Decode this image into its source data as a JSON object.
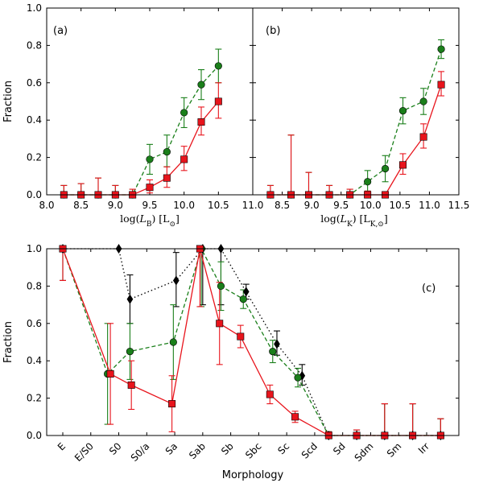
{
  "colors": {
    "green": "#1a7f1a",
    "red": "#e8141c",
    "black": "#000000"
  },
  "chart_data": [
    {
      "id": "a",
      "type": "line",
      "panel_label": "(a)",
      "xlabel": "log(L_B) [L_⊙]",
      "xlabel_main": "log(",
      "xlabel_var": "L",
      "xlabel_sub": "B",
      "xlabel_tail": ") [L",
      "xlabel_sub2": "⊙",
      "xlabel_close": "]",
      "ylabel": "Fraction",
      "xlim": [
        8.0,
        11.0
      ],
      "ylim": [
        0.0,
        1.0
      ],
      "xticks": [
        "8.0",
        "8.5",
        "9.0",
        "9.5",
        "10.0",
        "10.5",
        "11.0"
      ],
      "xtick_values": [
        8.0,
        8.5,
        9.0,
        9.5,
        10.0,
        10.5,
        11.0
      ],
      "yticks": [
        "0.0",
        "0.2",
        "0.4",
        "0.6",
        "0.8",
        "1.0"
      ],
      "ytick_values": [
        0.0,
        0.2,
        0.4,
        0.6,
        0.8,
        1.0
      ],
      "series": [
        {
          "name": "green",
          "color": "green",
          "marker": "circle",
          "dash": "5,3",
          "x": [
            8.25,
            8.5,
            8.75,
            9.0,
            9.25,
            9.5,
            9.75,
            10.0,
            10.25,
            10.5
          ],
          "y": [
            0.0,
            0.0,
            0.0,
            0.0,
            0.0,
            0.19,
            0.23,
            0.44,
            0.59,
            0.69
          ],
          "err_lo": [
            0.0,
            0.0,
            0.0,
            0.0,
            0.0,
            0.08,
            0.08,
            0.08,
            0.08,
            0.09
          ],
          "err_hi": [
            0.05,
            0.06,
            0.09,
            0.05,
            0.03,
            0.08,
            0.09,
            0.08,
            0.08,
            0.09
          ]
        },
        {
          "name": "red",
          "color": "red",
          "marker": "square",
          "dash": "",
          "x": [
            8.25,
            8.5,
            8.75,
            9.0,
            9.25,
            9.5,
            9.75,
            10.0,
            10.25,
            10.5
          ],
          "y": [
            0.0,
            0.0,
            0.0,
            0.0,
            0.0,
            0.04,
            0.09,
            0.19,
            0.39,
            0.5
          ],
          "err_lo": [
            0.0,
            0.0,
            0.0,
            0.0,
            0.0,
            0.03,
            0.05,
            0.06,
            0.07,
            0.09
          ],
          "err_hi": [
            0.05,
            0.06,
            0.09,
            0.05,
            0.03,
            0.04,
            0.06,
            0.07,
            0.08,
            0.1
          ]
        }
      ]
    },
    {
      "id": "b",
      "type": "line",
      "panel_label": "(b)",
      "xlabel": "log(L_K) [L_K,⊙]",
      "xlabel_main": "log(",
      "xlabel_var": "L",
      "xlabel_sub": "K",
      "xlabel_tail": ") [L",
      "xlabel_sub2": "K,⊙",
      "xlabel_close": "]",
      "ylabel": "",
      "xlim": [
        8.0,
        11.5
      ],
      "ylim": [
        0.0,
        1.0
      ],
      "xticks": [
        "8.5",
        "9.0",
        "9.5",
        "10.0",
        "10.5",
        "11.0",
        "11.5"
      ],
      "xtick_values": [
        8.5,
        9.0,
        9.5,
        10.0,
        10.5,
        11.0,
        11.5
      ],
      "yticks": [],
      "ytick_values": [
        0.0,
        0.2,
        0.4,
        0.6,
        0.8,
        1.0
      ],
      "series": [
        {
          "name": "green",
          "color": "green",
          "marker": "circle",
          "dash": "5,3",
          "x": [
            8.3,
            8.65,
            8.95,
            9.3,
            9.65,
            9.95,
            10.25,
            10.55,
            10.9,
            11.2
          ],
          "y": [
            0.0,
            0.0,
            0.0,
            0.0,
            0.0,
            0.07,
            0.14,
            0.45,
            0.5,
            0.78
          ],
          "err_lo": [
            0.0,
            0.0,
            0.0,
            0.0,
            0.0,
            0.05,
            0.07,
            0.07,
            0.07,
            0.05
          ],
          "err_hi": [
            0.05,
            0.32,
            0.12,
            0.05,
            0.03,
            0.06,
            0.07,
            0.07,
            0.07,
            0.05
          ]
        },
        {
          "name": "red",
          "color": "red",
          "marker": "square",
          "dash": "",
          "x": [
            8.3,
            8.65,
            8.95,
            9.3,
            9.65,
            9.95,
            10.25,
            10.55,
            10.9,
            11.2
          ],
          "y": [
            0.0,
            0.0,
            0.0,
            0.0,
            0.0,
            0.0,
            0.0,
            0.16,
            0.31,
            0.59
          ],
          "err_lo": [
            0.0,
            0.0,
            0.0,
            0.0,
            0.0,
            0.0,
            0.0,
            0.05,
            0.06,
            0.06
          ],
          "err_hi": [
            0.05,
            0.32,
            0.12,
            0.05,
            0.03,
            0.02,
            0.01,
            0.06,
            0.07,
            0.07
          ]
        }
      ]
    },
    {
      "id": "c",
      "type": "line",
      "panel_label": "(c)",
      "xlabel": "Morphology",
      "ylabel": "Fraction",
      "categories": [
        "E",
        "E/S0",
        "S0",
        "S0/a",
        "Sa",
        "Sab",
        "Sb",
        "Sbc",
        "Sc",
        "Scd",
        "Sd",
        "Sdm",
        "Sm",
        "Irr"
      ],
      "ylim": [
        0.0,
        1.0
      ],
      "yticks": [
        "0.0",
        "0.2",
        "0.4",
        "0.6",
        "0.8",
        "1.0"
      ],
      "ytick_values": [
        0.0,
        0.2,
        0.4,
        0.6,
        0.8,
        1.0
      ],
      "series": [
        {
          "name": "black",
          "color": "black",
          "marker": "diamond",
          "dash": "1.5,3",
          "x": [
            0.0,
            2.0,
            2.4,
            4.05,
            5.0,
            5.65,
            6.55,
            7.65,
            8.55,
            9.5,
            10.5,
            11.5,
            12.5,
            13.5
          ],
          "y": [
            1.0,
            1.0,
            0.73,
            0.83,
            1.0,
            1.0,
            0.77,
            0.49,
            0.32,
            0.0,
            0.0,
            0.0,
            0.0,
            0.0
          ],
          "err_lo": [
            0.17,
            0.0,
            0.13,
            0.14,
            0.3,
            0.3,
            0.04,
            0.06,
            0.05,
            0.0,
            0.0,
            0.0,
            0.0,
            0.0
          ],
          "err_hi": [
            0.0,
            0.0,
            0.13,
            0.15,
            0.0,
            0.0,
            0.04,
            0.07,
            0.06,
            0.02,
            0.03,
            0.17,
            0.17,
            0.09
          ]
        },
        {
          "name": "green",
          "color": "green",
          "marker": "circle",
          "dash": "5,3",
          "x": [
            0.0,
            1.6,
            2.4,
            3.95,
            4.95,
            5.65,
            6.45,
            7.5,
            8.4,
            9.5,
            10.5,
            11.5,
            12.5,
            13.5
          ],
          "y": [
            1.0,
            0.33,
            0.45,
            0.5,
            1.0,
            0.8,
            0.73,
            0.45,
            0.31,
            0.0,
            0.0,
            0.0,
            0.0,
            0.0
          ],
          "err_lo": [
            0.17,
            0.27,
            0.15,
            0.2,
            0.31,
            0.13,
            0.05,
            0.06,
            0.05,
            0.0,
            0.0,
            0.0,
            0.0,
            0.0
          ],
          "err_hi": [
            0.0,
            0.27,
            0.15,
            0.2,
            0.0,
            0.13,
            0.05,
            0.06,
            0.05,
            0.02,
            0.03,
            0.17,
            0.17,
            0.09
          ]
        },
        {
          "name": "red",
          "color": "red",
          "marker": "square",
          "dash": "",
          "x": [
            0.0,
            1.7,
            2.45,
            3.9,
            4.9,
            5.6,
            6.35,
            7.4,
            8.3,
            9.5,
            10.5,
            11.5,
            12.5,
            13.5
          ],
          "y": [
            1.0,
            0.33,
            0.27,
            0.17,
            1.0,
            0.6,
            0.53,
            0.22,
            0.1,
            0.0,
            0.0,
            0.0,
            0.0,
            0.0
          ],
          "err_lo": [
            0.17,
            0.27,
            0.13,
            0.15,
            0.31,
            0.22,
            0.06,
            0.05,
            0.03,
            0.0,
            0.0,
            0.0,
            0.0,
            0.0
          ],
          "err_hi": [
            0.0,
            0.27,
            0.13,
            0.15,
            0.0,
            0.22,
            0.06,
            0.05,
            0.03,
            0.02,
            0.03,
            0.17,
            0.17,
            0.09
          ]
        }
      ]
    }
  ]
}
